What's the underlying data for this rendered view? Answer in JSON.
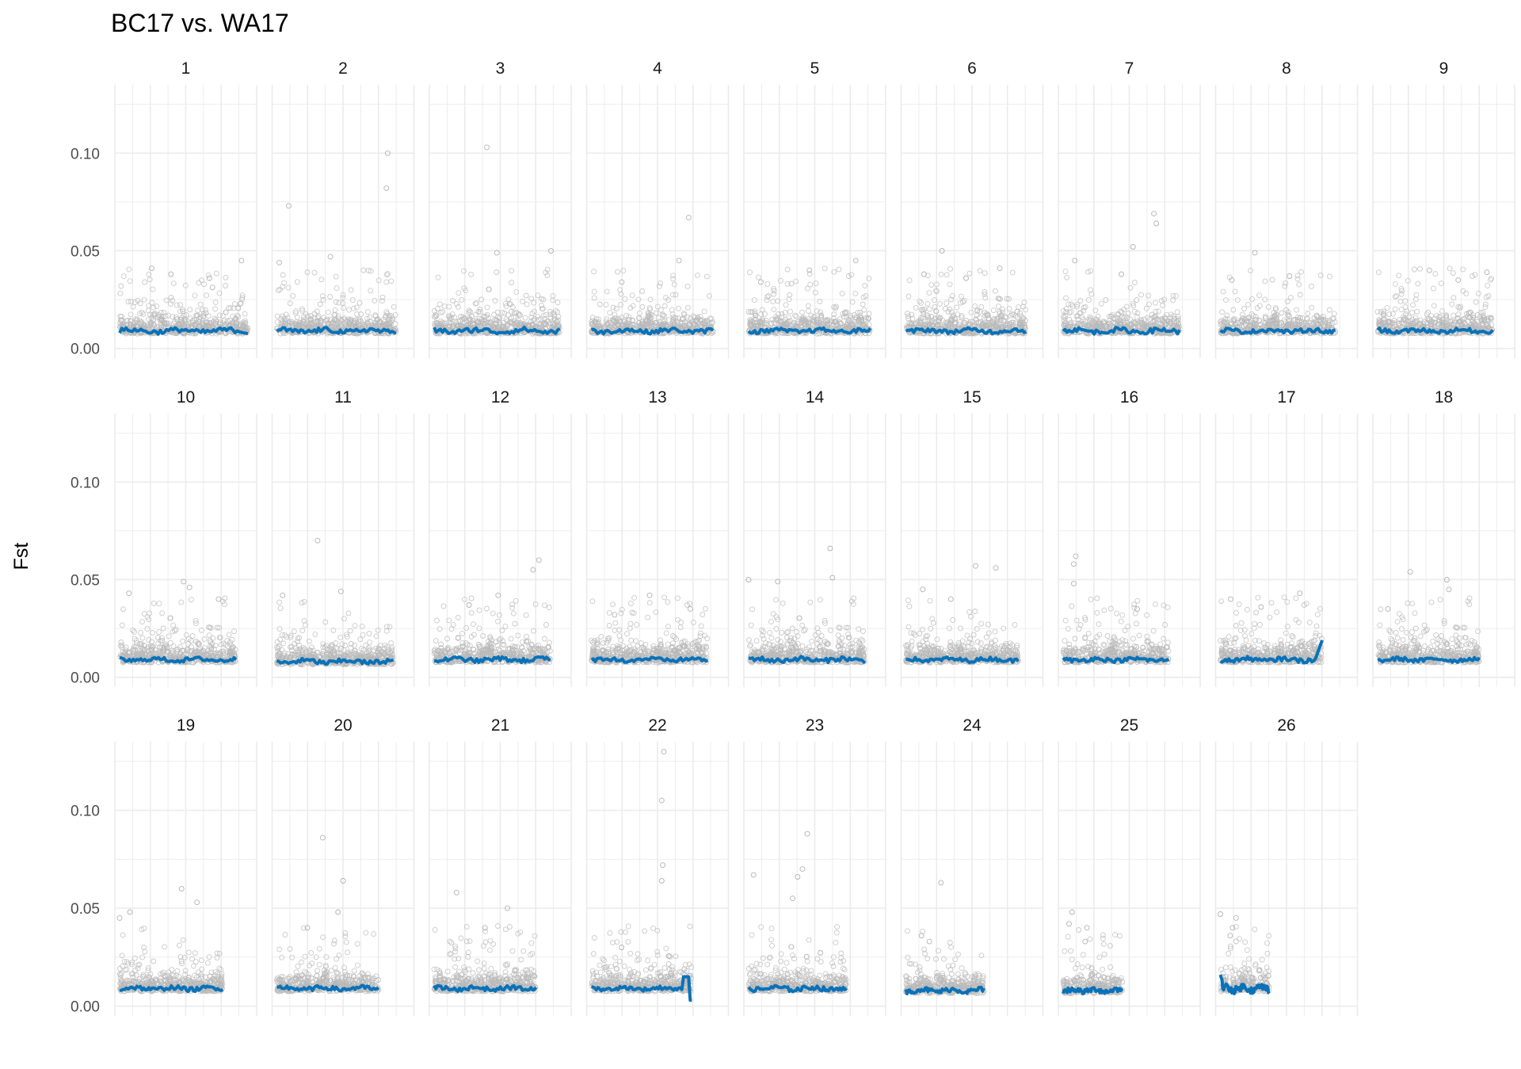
{
  "chart_data": {
    "type": "scatter",
    "title": "BC17 vs.  WA17",
    "xlabel": "",
    "ylabel": "Fst",
    "ylim": [
      -0.005,
      0.135
    ],
    "y_ticks": [
      0.0,
      0.05,
      0.1
    ],
    "y_tick_labels": [
      "0.00",
      "0.05",
      "0.10"
    ],
    "grid": true,
    "facet_layout": {
      "columns": 9,
      "rows": 3
    },
    "point_color": "#b8b8b8",
    "line_color": "#0872b9",
    "panels": [
      {
        "label": "1",
        "relative_length": 0.97,
        "baseline": 0.009,
        "line_amp": 0.0012,
        "outliers": [
          [
            0.95,
            0.045
          ],
          [
            0.25,
            0.041
          ],
          [
            0.4,
            0.038
          ],
          [
            0.7,
            0.036
          ]
        ]
      },
      {
        "label": "2",
        "relative_length": 0.9,
        "baseline": 0.009,
        "line_amp": 0.0012,
        "outliers": [
          [
            0.93,
            0.1
          ],
          [
            0.92,
            0.082
          ],
          [
            0.1,
            0.073
          ],
          [
            0.45,
            0.047
          ],
          [
            0.02,
            0.044
          ]
        ]
      },
      {
        "label": "3",
        "relative_length": 0.95,
        "baseline": 0.009,
        "line_amp": 0.0013,
        "outliers": [
          [
            0.42,
            0.103
          ],
          [
            0.5,
            0.049
          ],
          [
            0.93,
            0.05
          ]
        ]
      },
      {
        "label": "4",
        "relative_length": 0.92,
        "baseline": 0.009,
        "line_amp": 0.0011,
        "outliers": [
          [
            0.8,
            0.067
          ],
          [
            0.72,
            0.045
          ],
          [
            0.25,
            0.034
          ]
        ]
      },
      {
        "label": "5",
        "relative_length": 0.92,
        "baseline": 0.009,
        "line_amp": 0.001,
        "outliers": [
          [
            0.88,
            0.045
          ],
          [
            0.5,
            0.04
          ],
          [
            0.1,
            0.034
          ]
        ]
      },
      {
        "label": "6",
        "relative_length": 0.91,
        "baseline": 0.009,
        "line_amp": 0.0011,
        "outliers": [
          [
            0.3,
            0.05
          ],
          [
            0.78,
            0.041
          ],
          [
            0.15,
            0.038
          ],
          [
            0.5,
            0.036
          ]
        ]
      },
      {
        "label": "7",
        "relative_length": 0.88,
        "baseline": 0.009,
        "line_amp": 0.0012,
        "outliers": [
          [
            0.78,
            0.069
          ],
          [
            0.8,
            0.064
          ],
          [
            0.6,
            0.052
          ],
          [
            0.1,
            0.045
          ],
          [
            0.5,
            0.038
          ]
        ]
      },
      {
        "label": "8",
        "relative_length": 0.87,
        "baseline": 0.009,
        "line_amp": 0.001,
        "outliers": [
          [
            0.3,
            0.049
          ],
          [
            0.6,
            0.037
          ],
          [
            0.1,
            0.035
          ]
        ]
      },
      {
        "label": "9",
        "relative_length": 0.87,
        "baseline": 0.009,
        "line_amp": 0.001,
        "outliers": [
          [
            0.95,
            0.039
          ],
          [
            0.45,
            0.04
          ],
          [
            0.7,
            0.035
          ]
        ]
      },
      {
        "label": "10",
        "relative_length": 0.88,
        "baseline": 0.009,
        "line_amp": 0.001,
        "outliers": [
          [
            0.08,
            0.043
          ],
          [
            0.55,
            0.049
          ],
          [
            0.6,
            0.046
          ],
          [
            0.85,
            0.04
          ]
        ]
      },
      {
        "label": "11",
        "relative_length": 0.88,
        "baseline": 0.008,
        "line_amp": 0.0012,
        "outliers": [
          [
            0.35,
            0.07
          ],
          [
            0.55,
            0.044
          ],
          [
            0.05,
            0.042
          ]
        ]
      },
      {
        "label": "12",
        "relative_length": 0.88,
        "baseline": 0.009,
        "line_amp": 0.0011,
        "outliers": [
          [
            0.9,
            0.06
          ],
          [
            0.85,
            0.055
          ],
          [
            0.55,
            0.042
          ],
          [
            0.3,
            0.037
          ]
        ]
      },
      {
        "label": "13",
        "relative_length": 0.88,
        "baseline": 0.009,
        "line_amp": 0.001,
        "outliers": [
          [
            0.5,
            0.042
          ],
          [
            0.85,
            0.035
          ],
          [
            0.2,
            0.032
          ]
        ]
      },
      {
        "label": "14",
        "relative_length": 0.88,
        "baseline": 0.009,
        "line_amp": 0.0012,
        "outliers": [
          [
            0.7,
            0.066
          ],
          [
            0.72,
            0.051
          ],
          [
            0.25,
            0.049
          ],
          [
            0.0,
            0.05
          ]
        ]
      },
      {
        "label": "15",
        "relative_length": 0.85,
        "baseline": 0.009,
        "line_amp": 0.001,
        "outliers": [
          [
            0.62,
            0.057
          ],
          [
            0.8,
            0.056
          ],
          [
            0.15,
            0.045
          ],
          [
            0.4,
            0.04
          ]
        ]
      },
      {
        "label": "16",
        "relative_length": 0.8,
        "baseline": 0.009,
        "line_amp": 0.001,
        "outliers": [
          [
            0.12,
            0.062
          ],
          [
            0.1,
            0.058
          ],
          [
            0.1,
            0.048
          ],
          [
            0.7,
            0.035
          ]
        ]
      },
      {
        "label": "17",
        "relative_length": 0.77,
        "baseline": 0.009,
        "line_amp": 0.0011,
        "end_rise": 0.019,
        "outliers": [
          [
            0.78,
            0.043
          ],
          [
            0.1,
            0.04
          ],
          [
            0.4,
            0.036
          ]
        ]
      },
      {
        "label": "18",
        "relative_length": 0.77,
        "baseline": 0.009,
        "line_amp": 0.001,
        "outliers": [
          [
            0.32,
            0.054
          ],
          [
            0.68,
            0.05
          ],
          [
            0.7,
            0.045
          ],
          [
            0.1,
            0.035
          ]
        ]
      },
      {
        "label": "19",
        "relative_length": 0.78,
        "baseline": 0.009,
        "line_amp": 0.0011,
        "outliers": [
          [
            0.6,
            0.06
          ],
          [
            0.75,
            0.053
          ],
          [
            0.1,
            0.048
          ],
          [
            0.0,
            0.045
          ]
        ]
      },
      {
        "label": "20",
        "relative_length": 0.77,
        "baseline": 0.009,
        "line_amp": 0.0011,
        "outliers": [
          [
            0.45,
            0.086
          ],
          [
            0.65,
            0.064
          ],
          [
            0.6,
            0.048
          ],
          [
            0.3,
            0.04
          ]
        ]
      },
      {
        "label": "21",
        "relative_length": 0.77,
        "baseline": 0.009,
        "line_amp": 0.0011,
        "outliers": [
          [
            0.22,
            0.058
          ],
          [
            0.72,
            0.05
          ],
          [
            0.5,
            0.04
          ]
        ]
      },
      {
        "label": "22",
        "relative_length": 0.76,
        "baseline": 0.009,
        "line_amp": 0.0009,
        "end_spike": 0.015,
        "outliers": [
          [
            0.72,
            0.13
          ],
          [
            0.7,
            0.105
          ],
          [
            0.71,
            0.072
          ],
          [
            0.7,
            0.064
          ],
          [
            0.3,
            0.03
          ]
        ]
      },
      {
        "label": "23",
        "relative_length": 0.74,
        "baseline": 0.009,
        "line_amp": 0.0012,
        "outliers": [
          [
            0.6,
            0.088
          ],
          [
            0.55,
            0.07
          ],
          [
            0.5,
            0.066
          ],
          [
            0.05,
            0.067
          ],
          [
            0.45,
            0.055
          ]
        ]
      },
      {
        "label": "24",
        "relative_length": 0.59,
        "baseline": 0.008,
        "line_amp": 0.0012,
        "outliers": [
          [
            0.45,
            0.063
          ],
          [
            0.2,
            0.036
          ],
          [
            0.3,
            0.033
          ]
        ]
      },
      {
        "label": "25",
        "relative_length": 0.45,
        "baseline": 0.008,
        "line_amp": 0.0013,
        "outliers": [
          [
            0.15,
            0.048
          ],
          [
            0.1,
            0.042
          ],
          [
            0.4,
            0.04
          ],
          [
            0.37,
            0.033
          ]
        ]
      },
      {
        "label": "26",
        "relative_length": 0.37,
        "baseline": 0.009,
        "line_amp": 0.0018,
        "start_spike": 0.016,
        "outliers": [
          [
            0.0,
            0.047
          ],
          [
            0.32,
            0.045
          ],
          [
            0.25,
            0.04
          ],
          [
            0.2,
            0.036
          ]
        ]
      }
    ]
  }
}
